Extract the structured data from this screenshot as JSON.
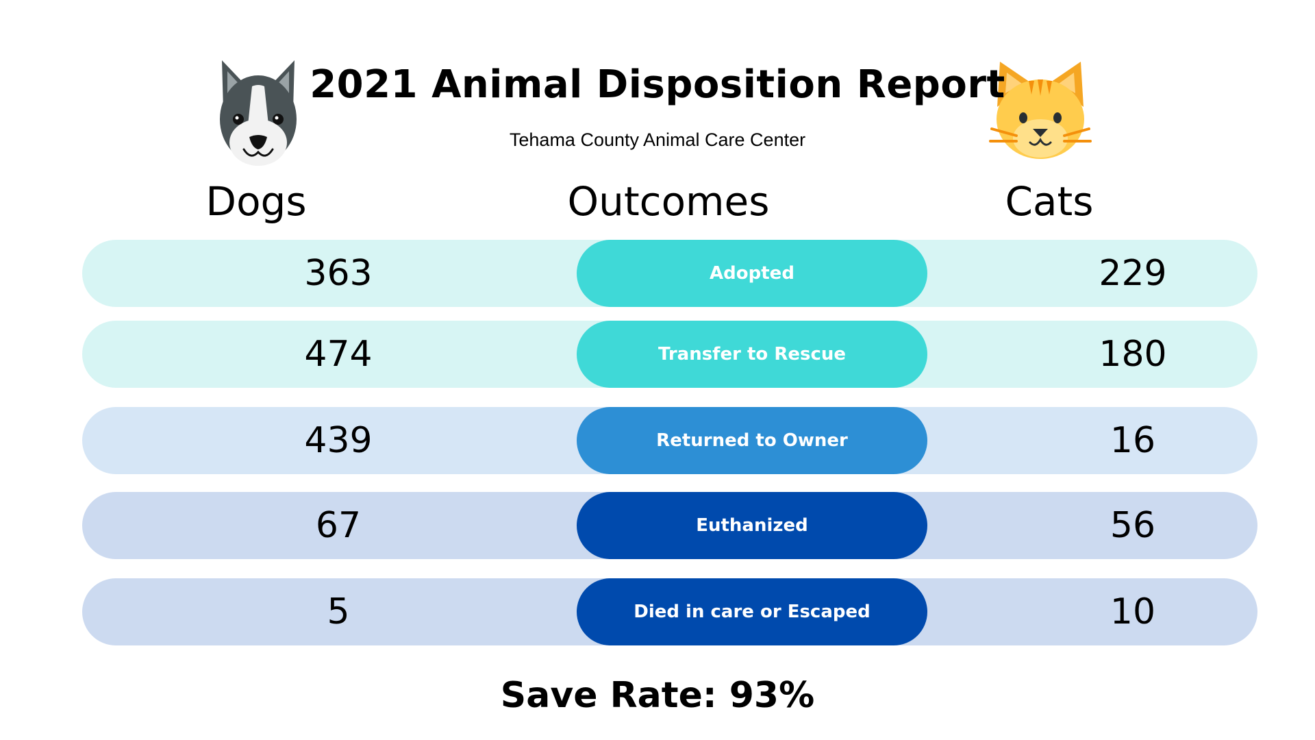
{
  "header": {
    "title": "2021 Animal Disposition Report",
    "subtitle": "Tehama County Animal Care Center"
  },
  "icons": {
    "dog": "dog-face-icon",
    "cat": "cat-face-icon"
  },
  "columns": {
    "dogs": "Dogs",
    "outcomes": "Outcomes",
    "cats": "Cats"
  },
  "rows": [
    {
      "outcome": "Adopted",
      "dogs": "363",
      "cats": "229",
      "row_color": "#d7f5f4",
      "pill_color": "#3fd9d7"
    },
    {
      "outcome": "Transfer to Rescue",
      "dogs": "474",
      "cats": "180",
      "row_color": "#d7f5f4",
      "pill_color": "#3fd9d7"
    },
    {
      "outcome": "Returned to Owner",
      "dogs": "439",
      "cats": "16",
      "row_color": "#d6e6f6",
      "pill_color": "#2d8fd5"
    },
    {
      "outcome": "Euthanized",
      "dogs": "67",
      "cats": "56",
      "row_color": "#ccdaf0",
      "pill_color": "#004aad"
    },
    {
      "outcome": "Died in care or Escaped",
      "dogs": "5",
      "cats": "10",
      "row_color": "#ccdaf0",
      "pill_color": "#004aad"
    }
  ],
  "footer": {
    "save_rate": "Save Rate: 93%"
  }
}
